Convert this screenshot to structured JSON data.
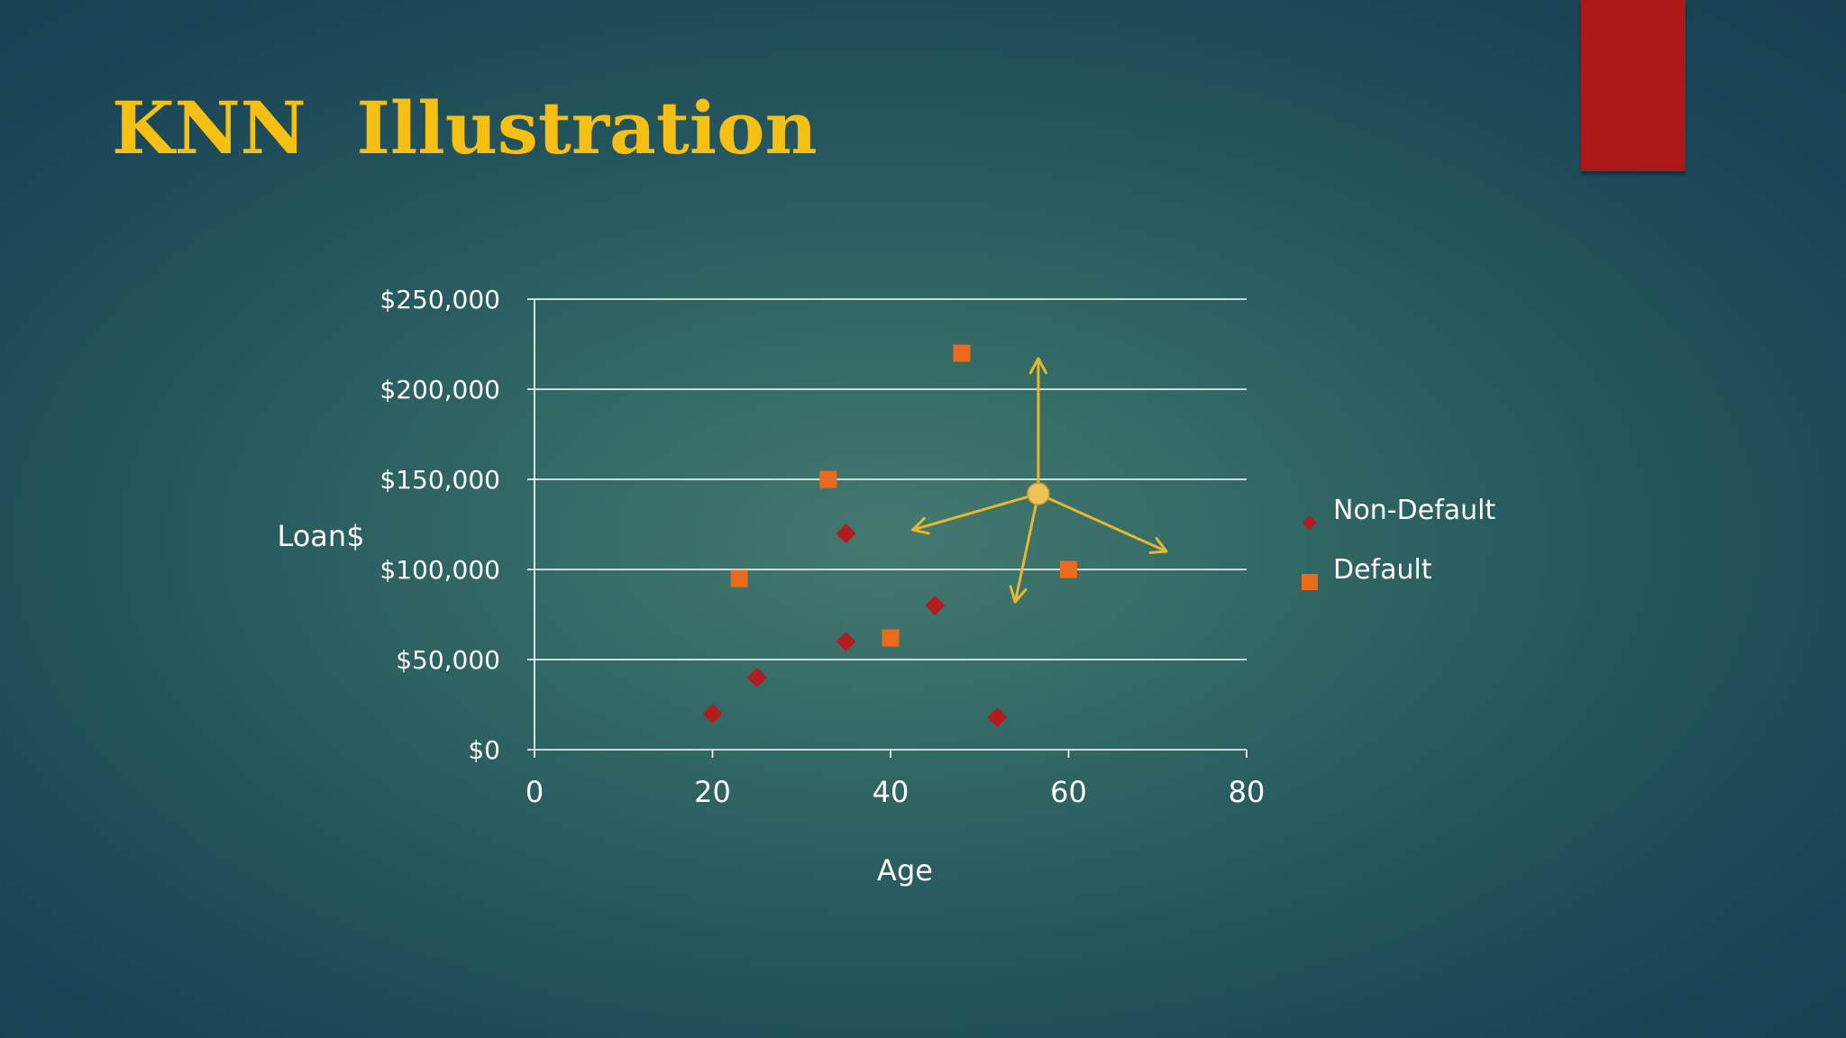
{
  "slide": {
    "title": "KNN  Illustration"
  },
  "colors": {
    "title": "#f5bf13",
    "accent_tab": "#ac1718",
    "non_default": "#b31c1c",
    "default": "#ec6a1c",
    "query_point": "#efc25a",
    "arrows": "#e6b730",
    "gridlines": "#ffffff"
  },
  "chart_data": {
    "type": "scatter",
    "xlabel": "Age",
    "ylabel": "Loan$",
    "xlim": [
      0,
      80
    ],
    "ylim": [
      0,
      250000
    ],
    "x_ticks": [
      0,
      20,
      40,
      60,
      80
    ],
    "x_tick_labels": [
      "0",
      "20",
      "40",
      "60",
      "80"
    ],
    "y_ticks": [
      0,
      50000,
      100000,
      150000,
      200000,
      250000
    ],
    "y_tick_labels": [
      "$0",
      "$50,000",
      "$100,000",
      "$150,000",
      "$200,000",
      "$250,000"
    ],
    "grid": "horizontal",
    "legend_position": "right",
    "series": [
      {
        "name": "Non-Default",
        "marker": "diamond",
        "color": "#b31c1c",
        "points": [
          [
            20,
            20000
          ],
          [
            25,
            40000
          ],
          [
            35,
            60000
          ],
          [
            35,
            120000
          ],
          [
            45,
            80000
          ],
          [
            52,
            18000
          ]
        ]
      },
      {
        "name": "Default",
        "marker": "square",
        "color": "#ec6a1c",
        "points": [
          [
            23,
            95000
          ],
          [
            33,
            150000
          ],
          [
            40,
            62000
          ],
          [
            48,
            220000
          ],
          [
            60,
            100000
          ]
        ]
      }
    ],
    "query_point": [
      56.6,
      142000
    ],
    "neighbor_arrows": [
      [
        56.6,
        217000
      ],
      [
        42.5,
        122000
      ],
      [
        54.0,
        82000
      ],
      [
        71.0,
        110000
      ]
    ]
  }
}
